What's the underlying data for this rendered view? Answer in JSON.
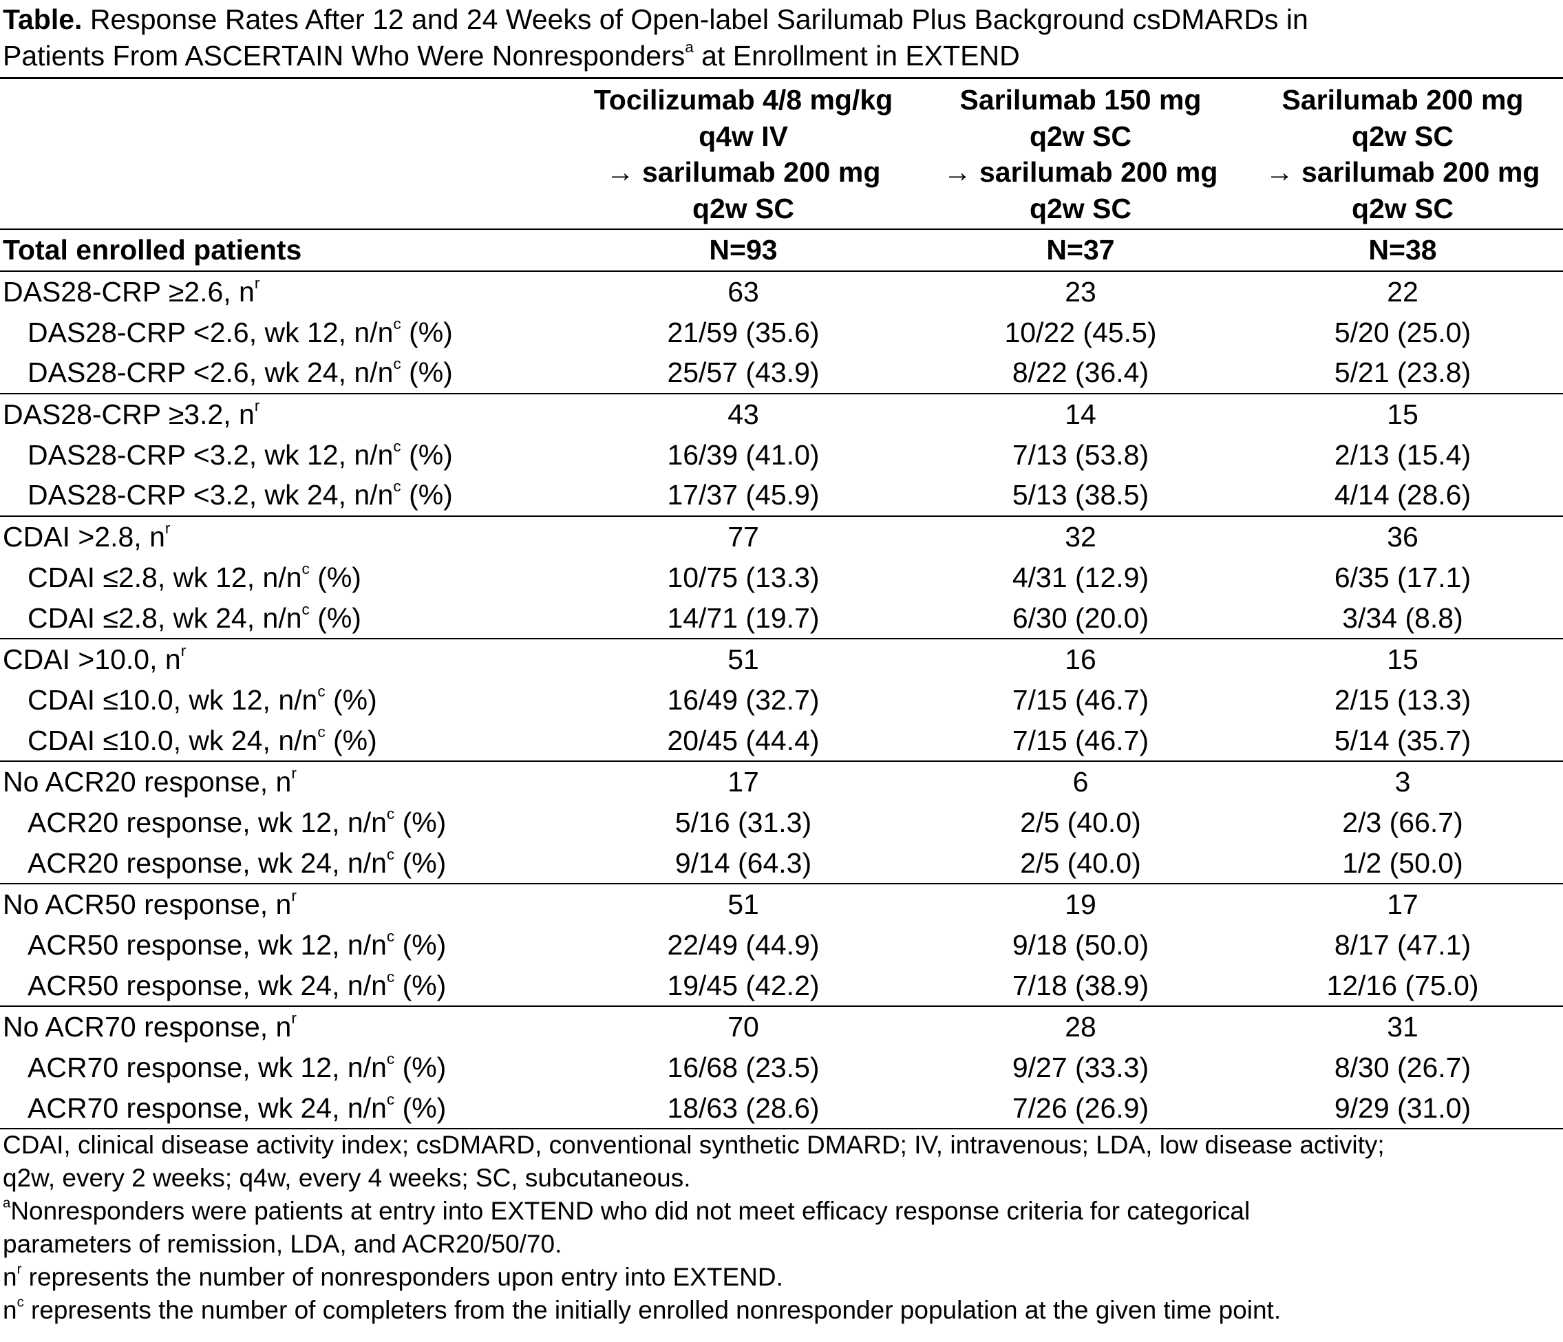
{
  "caption": {
    "label": "Table.",
    "text_line1": "Response Rates After 12 and 24 Weeks of Open-label Sarilumab Plus Background csDMARDs in",
    "text_line2_pre": "Patients From ASCERTAIN Who Were Nonresponders",
    "text_line2_sup": "a",
    "text_line2_post": "at Enrollment in EXTEND"
  },
  "columns": [
    {
      "line1": "Tocilizumab 4/8 mg/kg",
      "line2": "q4w IV",
      "line3": "→ sarilumab 200 mg",
      "line4": "q2w SC"
    },
    {
      "line1": "Sarilumab 150 mg",
      "line2": "q2w SC",
      "line3": "→ sarilumab 200 mg",
      "line4": "q2w SC"
    },
    {
      "line1": "Sarilumab 200 mg",
      "line2": "q2w SC",
      "line3": "→ sarilumab 200 mg",
      "line4": "q2w SC"
    }
  ],
  "total": {
    "label": "Total enrolled patients",
    "values": [
      "N=93",
      "N=37",
      "N=38"
    ]
  },
  "groups": [
    {
      "label": "DAS28-CRP ≥2.6, n",
      "sup": "r",
      "values": [
        "63",
        "23",
        "22"
      ],
      "rows": [
        {
          "label": "DAS28-CRP <2.6, wk 12, n/n",
          "sup": "c",
          "suffix": " (%)",
          "values": [
            "21/59 (35.6)",
            "10/22 (45.5)",
            "5/20 (25.0)"
          ]
        },
        {
          "label": "DAS28-CRP <2.6, wk 24, n/n",
          "sup": "c",
          "suffix": " (%)",
          "values": [
            "25/57 (43.9)",
            "8/22 (36.4)",
            "5/21 (23.8)"
          ]
        }
      ]
    },
    {
      "label": "DAS28-CRP ≥3.2, n",
      "sup": "r",
      "values": [
        "43",
        "14",
        "15"
      ],
      "rows": [
        {
          "label": "DAS28-CRP <3.2, wk 12, n/n",
          "sup": "c",
          "suffix": " (%)",
          "values": [
            "16/39 (41.0)",
            "7/13 (53.8)",
            "2/13 (15.4)"
          ]
        },
        {
          "label": "DAS28-CRP <3.2, wk 24, n/n",
          "sup": "c",
          "suffix": " (%)",
          "values": [
            "17/37 (45.9)",
            "5/13 (38.5)",
            "4/14 (28.6)"
          ]
        }
      ]
    },
    {
      "label": "CDAI >2.8, n",
      "sup": "r",
      "values": [
        "77",
        "32",
        "36"
      ],
      "rows": [
        {
          "label": "CDAI ≤2.8, wk 12, n/n",
          "sup": "c",
          "suffix": " (%)",
          "values": [
            "10/75 (13.3)",
            "4/31 (12.9)",
            "6/35 (17.1)"
          ]
        },
        {
          "label": "CDAI ≤2.8, wk 24, n/n",
          "sup": "c",
          "suffix": " (%)",
          "values": [
            "14/71 (19.7)",
            "6/30 (20.0)",
            "3/34 (8.8)"
          ]
        }
      ]
    },
    {
      "label": "CDAI >10.0, n",
      "sup": "r",
      "values": [
        "51",
        "16",
        "15"
      ],
      "rows": [
        {
          "label": "CDAI ≤10.0, wk 12, n/n",
          "sup": "c",
          "suffix": " (%)",
          "values": [
            "16/49 (32.7)",
            "7/15 (46.7)",
            "2/15 (13.3)"
          ]
        },
        {
          "label": "CDAI ≤10.0, wk 24, n/n",
          "sup": "c",
          "suffix": " (%)",
          "values": [
            "20/45 (44.4)",
            "7/15 (46.7)",
            "5/14 (35.7)"
          ]
        }
      ]
    },
    {
      "label": "No ACR20 response, n",
      "sup": "r",
      "values": [
        "17",
        "6",
        "3"
      ],
      "rows": [
        {
          "label": "ACR20 response, wk 12, n/n",
          "sup": "c",
          "suffix": " (%)",
          "values": [
            "5/16 (31.3)",
            "2/5 (40.0)",
            "2/3 (66.7)"
          ]
        },
        {
          "label": "ACR20 response, wk 24, n/n",
          "sup": "c",
          "suffix": " (%)",
          "values": [
            "9/14 (64.3)",
            "2/5 (40.0)",
            "1/2 (50.0)"
          ]
        }
      ]
    },
    {
      "label": "No ACR50 response, n",
      "sup": "r",
      "values": [
        "51",
        "19",
        "17"
      ],
      "rows": [
        {
          "label": "ACR50 response, wk 12, n/n",
          "sup": "c",
          "suffix": " (%)",
          "values": [
            "22/49 (44.9)",
            "9/18 (50.0)",
            "8/17 (47.1)"
          ]
        },
        {
          "label": "ACR50 response, wk 24, n/n",
          "sup": "c",
          "suffix": " (%)",
          "values": [
            "19/45 (42.2)",
            "7/18 (38.9)",
            "12/16 (75.0)"
          ]
        }
      ]
    },
    {
      "label": "No ACR70 response, n",
      "sup": "r",
      "values": [
        "70",
        "28",
        "31"
      ],
      "rows": [
        {
          "label": "ACR70 response, wk 12, n/n",
          "sup": "c",
          "suffix": " (%)",
          "values": [
            "16/68 (23.5)",
            "9/27 (33.3)",
            "8/30 (26.7)"
          ]
        },
        {
          "label": "ACR70 response, wk 24, n/n",
          "sup": "c",
          "suffix": " (%)",
          "values": [
            "18/63 (28.6)",
            "7/26 (26.9)",
            "9/29 (31.0)"
          ]
        }
      ]
    }
  ],
  "footnotes": {
    "abbrev_line1": "CDAI, clinical disease activity index; csDMARD, conventional synthetic DMARD; IV, intravenous; LDA, low disease activity;",
    "abbrev_line2": "q2w, every 2 weeks; q4w, every 4 weeks; SC, subcutaneous.",
    "a_sup": "a",
    "a_line1": "Nonresponders were patients at entry into EXTEND who did not meet efficacy response criteria for categorical",
    "a_line2": "parameters of remission, LDA, and ACR20/50/70.",
    "r_base": "n",
    "r_sup": "r",
    "r_text": " represents the number of nonresponders upon entry into EXTEND.",
    "c_base": "n",
    "c_sup": "c",
    "c_text": " represents the number of completers from the initially enrolled nonresponder population at the given time point."
  }
}
